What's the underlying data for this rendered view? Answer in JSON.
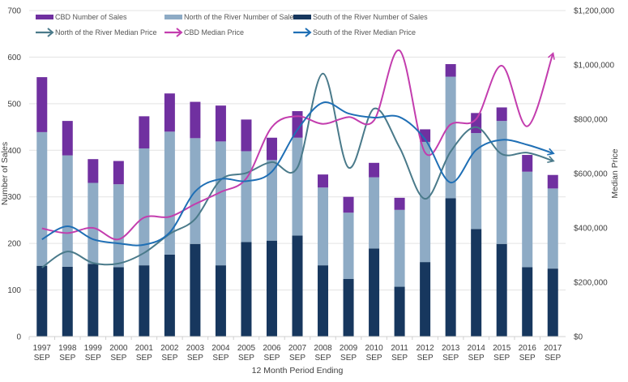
{
  "chart_data": {
    "type": "bar",
    "subtype": "stacked bar with smoothed line overlay (dual axis)",
    "title": "",
    "xlabel": "12 Month Period Ending",
    "ylabel": "Number of Sales",
    "y2label": "Median Price",
    "ylim": [
      0,
      700
    ],
    "y2lim": [
      0,
      1200000
    ],
    "yticks": [
      "0",
      "100",
      "200",
      "300",
      "400",
      "500",
      "600",
      "700"
    ],
    "y2ticks": [
      "$0",
      "$200,000",
      "$400,000",
      "$600,000",
      "$800,000",
      "$1,000,000",
      "$1,200,000"
    ],
    "grid": true,
    "legend_position": "top",
    "categories": [
      [
        "1997",
        "SEP"
      ],
      [
        "1998",
        "SEP"
      ],
      [
        "1999",
        "SEP"
      ],
      [
        "2000",
        "SEP"
      ],
      [
        "2001",
        "SEP"
      ],
      [
        "2002",
        "SEP"
      ],
      [
        "2003",
        "SEP"
      ],
      [
        "2004",
        "SEP"
      ],
      [
        "2005",
        "SEP"
      ],
      [
        "2006",
        "SEP"
      ],
      [
        "2007",
        "SEP"
      ],
      [
        "2008",
        "SEP"
      ],
      [
        "2009",
        "SEP"
      ],
      [
        "2010",
        "SEP"
      ],
      [
        "2011",
        "SEP"
      ],
      [
        "2012",
        "SEP"
      ],
      [
        "2013",
        "SEP"
      ],
      [
        "2014",
        "SEP"
      ],
      [
        "2015",
        "SEP"
      ],
      [
        "2016",
        "SEP"
      ],
      [
        "2017",
        "SEP"
      ]
    ],
    "bar_series": [
      {
        "name": "South of the River Number of Sales",
        "color": "#17375E",
        "values": [
          152,
          150,
          156,
          149,
          153,
          176,
          199,
          153,
          203,
          206,
          217,
          153,
          124,
          189,
          107,
          160,
          297,
          231,
          199,
          149,
          146
        ]
      },
      {
        "name": "North of the River Number of Sales",
        "color": "#8EABC5",
        "values": [
          287,
          239,
          174,
          178,
          251,
          264,
          227,
          266,
          195,
          173,
          210,
          167,
          142,
          153,
          165,
          258,
          261,
          206,
          264,
          205,
          172
        ]
      },
      {
        "name": "CBD Number of Sales",
        "color": "#7030A0",
        "values": [
          118,
          74,
          51,
          50,
          69,
          82,
          78,
          77,
          68,
          48,
          57,
          28,
          34,
          31,
          26,
          27,
          27,
          43,
          29,
          36,
          29
        ]
      }
    ],
    "line_series": [
      {
        "name": "North of the River Median Price",
        "color": "#4A7A8A",
        "values": [
          254000,
          313000,
          271000,
          269000,
          308000,
          378000,
          433000,
          577000,
          602000,
          642000,
          622000,
          968000,
          622000,
          839000,
          696000,
          507000,
          681000,
          771000,
          672000,
          677000,
          647000
        ]
      },
      {
        "name": "CBD Median Price",
        "color": "#C33DAE",
        "values": [
          398000,
          381000,
          400000,
          358000,
          438000,
          441000,
          488000,
          532000,
          582000,
          771000,
          811000,
          783000,
          808000,
          796000,
          1053000,
          677000,
          781000,
          801000,
          997000,
          774000,
          1040000
        ]
      },
      {
        "name": "South of the River Median Price",
        "color": "#1F6FB5",
        "values": [
          358000,
          406000,
          358000,
          343000,
          338000,
          383000,
          534000,
          580000,
          572000,
          607000,
          761000,
          861000,
          821000,
          806000,
          808000,
          726000,
          567000,
          687000,
          724000,
          706000,
          675000
        ]
      }
    ],
    "legend": [
      {
        "label": "CBD Number of Sales",
        "kind": "bar",
        "color": "#7030A0"
      },
      {
        "label": "North of the River Number of Sales",
        "kind": "bar",
        "color": "#8EABC5"
      },
      {
        "label": "South of the River Number of Sales",
        "kind": "bar",
        "color": "#17375E"
      },
      {
        "label": "North of the River Median Price",
        "kind": "line",
        "color": "#4A7A8A"
      },
      {
        "label": "CBD Median Price",
        "kind": "line",
        "color": "#C33DAE"
      },
      {
        "label": "South of the River Median Price",
        "kind": "line",
        "color": "#1F6FB5"
      }
    ]
  }
}
